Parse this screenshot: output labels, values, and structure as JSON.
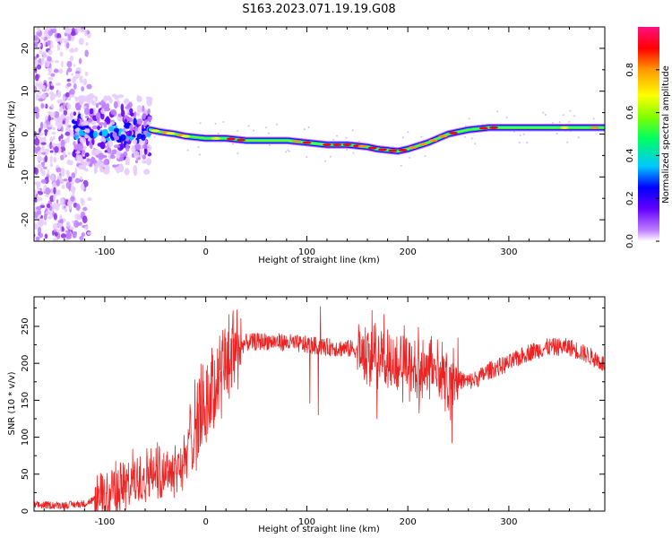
{
  "title": "S163.2023.071.19.19.G08",
  "chart_data": [
    {
      "type": "heatmap",
      "xlabel": "Height of straight line (km)",
      "ylabel": "Frequency (Hz)",
      "xlim": [
        -170,
        395
      ],
      "ylim": [
        -25,
        25
      ],
      "xticks": [
        "-100",
        "0",
        "100",
        "200",
        "300"
      ],
      "yticks": [
        "-20",
        "-10",
        "0",
        "10",
        "20"
      ],
      "colorbar": {
        "label": "Normalized spectral amplitude",
        "range": [
          0,
          1
        ],
        "ticks": [
          "0.0",
          "0.2",
          "0.4",
          "0.6",
          "0.8"
        ],
        "colors": [
          "#ffffff",
          "#c080ff",
          "#6600ff",
          "#0000ff",
          "#00c8ff",
          "#00ff60",
          "#80ff00",
          "#ffff00",
          "#ff9900",
          "#ff0000",
          "#ff1080"
        ]
      },
      "ridge": {
        "x": [
          -55,
          -45,
          -30,
          -20,
          0,
          20,
          40,
          60,
          80,
          100,
          120,
          140,
          160,
          170,
          190,
          200,
          220,
          240,
          260,
          280,
          300,
          340,
          395
        ],
        "frequency": [
          1,
          0.5,
          0,
          -0.5,
          -1,
          -1,
          -1.5,
          -1.5,
          -1.5,
          -2,
          -2.5,
          -2.5,
          -3,
          -3.5,
          -4,
          -3.5,
          -2,
          0,
          1,
          1.5,
          1.5,
          1.5,
          1.5
        ]
      }
    },
    {
      "type": "line",
      "xlabel": "Height of straight line (km)",
      "ylabel": "SNR (10 * v/v)",
      "xlim": [
        -170,
        395
      ],
      "ylim": [
        0,
        290
      ],
      "xticks": [
        "-100",
        "0",
        "100",
        "200",
        "300"
      ],
      "yticks": [
        "0",
        "50",
        "100",
        "150",
        "200",
        "250"
      ],
      "color": "#ee2222",
      "series": [
        {
          "x": [
            -170,
            -140,
            -120,
            -100,
            -80,
            -60,
            -40,
            -30,
            -20,
            -15,
            -10,
            -5,
            0,
            10,
            20,
            30,
            40,
            60,
            80,
            100,
            120,
            140,
            160,
            170,
            180,
            190,
            200,
            210,
            220,
            230,
            240,
            250,
            260,
            270,
            280,
            300,
            320,
            340,
            360,
            380,
            395
          ],
          "values": [
            8,
            8,
            10,
            22,
            35,
            50,
            55,
            60,
            65,
            110,
            120,
            130,
            145,
            170,
            200,
            220,
            228,
            230,
            228,
            225,
            222,
            220,
            218,
            215,
            205,
            200,
            200,
            195,
            190,
            185,
            180,
            178,
            175,
            180,
            190,
            200,
            215,
            222,
            222,
            210,
            198
          ]
        }
      ]
    }
  ]
}
